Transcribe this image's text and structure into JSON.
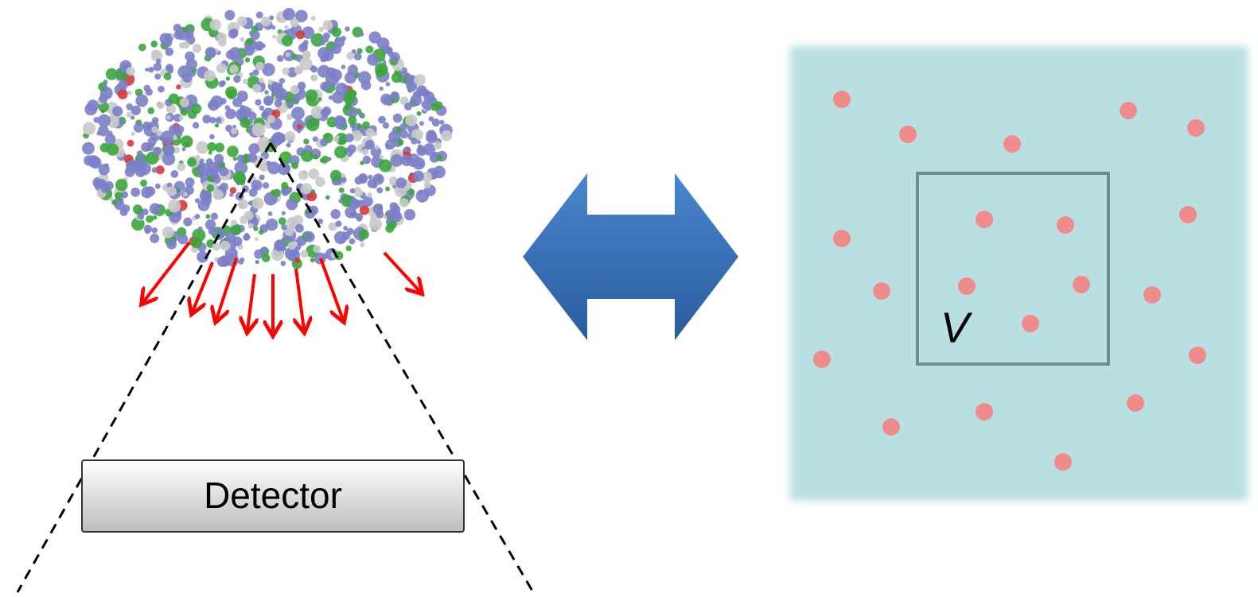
{
  "detector": {
    "label": "Detector"
  },
  "volume": {
    "label": "V"
  }
}
